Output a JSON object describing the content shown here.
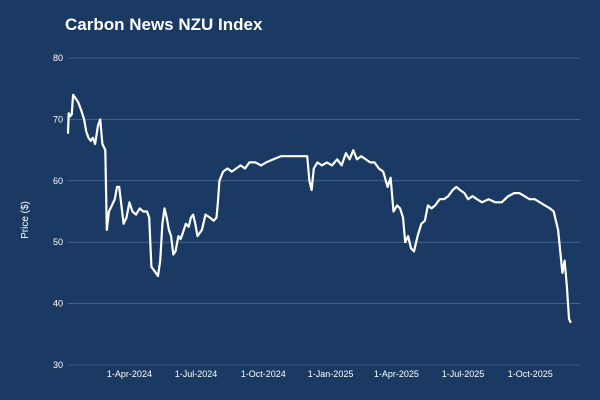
{
  "chart_data": {
    "type": "line",
    "title": "Carbon News NZU Index",
    "xlabel": "",
    "ylabel": "Price ($)",
    "ylim": [
      30,
      80
    ],
    "yticks": [
      30,
      40,
      50,
      60,
      70,
      80
    ],
    "xlim": [
      "2024-01-08",
      "2025-12-08"
    ],
    "xticks": [
      "1-Apr-2024",
      "1-Jul-2024",
      "1-Oct-2024",
      "1-Jan-2025",
      "1-Apr-2025",
      "1-Jul-2025",
      "1-Oct-2025"
    ],
    "grid": "horizontal",
    "legend": "none",
    "line_color": "#ffffff",
    "background_color": "#1b3a63",
    "series": [
      {
        "points": [
          [
            "2024-01-08",
            67.8
          ],
          [
            "2024-01-09",
            71.0
          ],
          [
            "2024-01-11",
            70.5
          ],
          [
            "2024-01-13",
            70.8
          ],
          [
            "2024-01-15",
            74.0
          ],
          [
            "2024-01-18",
            73.5
          ],
          [
            "2024-01-22",
            72.8
          ],
          [
            "2024-01-26",
            71.5
          ],
          [
            "2024-01-30",
            70.0
          ],
          [
            "2024-02-02",
            68.0
          ],
          [
            "2024-02-05",
            67.0
          ],
          [
            "2024-02-08",
            66.5
          ],
          [
            "2024-02-11",
            67.0
          ],
          [
            "2024-02-14",
            66.0
          ],
          [
            "2024-02-18",
            69.0
          ],
          [
            "2024-02-21",
            70.0
          ],
          [
            "2024-02-24",
            66.0
          ],
          [
            "2024-02-28",
            65.0
          ],
          [
            "2024-03-01",
            52.0
          ],
          [
            "2024-03-04",
            55.0
          ],
          [
            "2024-03-08",
            56.0
          ],
          [
            "2024-03-12",
            57.0
          ],
          [
            "2024-03-15",
            59.0
          ],
          [
            "2024-03-18",
            59.0
          ],
          [
            "2024-03-21",
            56.0
          ],
          [
            "2024-03-24",
            53.0
          ],
          [
            "2024-03-28",
            54.0
          ],
          [
            "2024-04-01",
            56.5
          ],
          [
            "2024-04-05",
            55.0
          ],
          [
            "2024-04-10",
            54.5
          ],
          [
            "2024-04-15",
            55.5
          ],
          [
            "2024-04-20",
            55.0
          ],
          [
            "2024-04-25",
            55.0
          ],
          [
            "2024-04-28",
            54.0
          ],
          [
            "2024-05-01",
            46.0
          ],
          [
            "2024-05-04",
            45.5
          ],
          [
            "2024-05-07",
            45.0
          ],
          [
            "2024-05-10",
            44.5
          ],
          [
            "2024-05-13",
            47.0
          ],
          [
            "2024-05-16",
            53.0
          ],
          [
            "2024-05-19",
            55.5
          ],
          [
            "2024-05-22",
            54.0
          ],
          [
            "2024-05-25",
            52.0
          ],
          [
            "2024-05-28",
            51.0
          ],
          [
            "2024-05-31",
            48.0
          ],
          [
            "2024-06-03",
            48.5
          ],
          [
            "2024-06-07",
            51.0
          ],
          [
            "2024-06-10",
            50.5
          ],
          [
            "2024-06-13",
            51.5
          ],
          [
            "2024-06-17",
            53.0
          ],
          [
            "2024-06-21",
            52.5
          ],
          [
            "2024-06-24",
            54.0
          ],
          [
            "2024-06-27",
            54.5
          ],
          [
            "2024-06-30",
            53.0
          ],
          [
            "2024-07-03",
            51.0
          ],
          [
            "2024-07-06",
            51.5
          ],
          [
            "2024-07-09",
            52.0
          ],
          [
            "2024-07-14",
            54.5
          ],
          [
            "2024-07-20",
            54.0
          ],
          [
            "2024-07-25",
            53.5
          ],
          [
            "2024-07-29",
            54.0
          ],
          [
            "2024-07-31",
            56.5
          ],
          [
            "2024-08-02",
            60.0
          ],
          [
            "2024-08-07",
            61.5
          ],
          [
            "2024-08-13",
            62.0
          ],
          [
            "2024-08-19",
            61.5
          ],
          [
            "2024-08-25",
            62.0
          ],
          [
            "2024-08-31",
            62.5
          ],
          [
            "2024-09-06",
            62.0
          ],
          [
            "2024-09-12",
            63.0
          ],
          [
            "2024-09-20",
            63.0
          ],
          [
            "2024-09-28",
            62.5
          ],
          [
            "2024-10-05",
            63.0
          ],
          [
            "2024-10-15",
            63.5
          ],
          [
            "2024-10-25",
            64.0
          ],
          [
            "2024-11-05",
            64.0
          ],
          [
            "2024-11-15",
            64.0
          ],
          [
            "2024-11-25",
            64.0
          ],
          [
            "2024-11-30",
            64.0
          ],
          [
            "2024-12-03",
            60.0
          ],
          [
            "2024-12-06",
            58.5
          ],
          [
            "2024-12-09",
            62.0
          ],
          [
            "2024-12-14",
            63.0
          ],
          [
            "2024-12-20",
            62.5
          ],
          [
            "2024-12-27",
            63.0
          ],
          [
            "2025-01-03",
            62.5
          ],
          [
            "2025-01-10",
            63.5
          ],
          [
            "2025-01-16",
            62.5
          ],
          [
            "2025-01-22",
            64.5
          ],
          [
            "2025-01-27",
            63.5
          ],
          [
            "2025-02-01",
            65.0
          ],
          [
            "2025-02-06",
            63.5
          ],
          [
            "2025-02-12",
            64.0
          ],
          [
            "2025-02-18",
            63.5
          ],
          [
            "2025-02-24",
            63.0
          ],
          [
            "2025-03-02",
            63.0
          ],
          [
            "2025-03-08",
            62.0
          ],
          [
            "2025-03-14",
            61.5
          ],
          [
            "2025-03-20",
            59.0
          ],
          [
            "2025-03-24",
            60.5
          ],
          [
            "2025-03-28",
            55.0
          ],
          [
            "2025-04-02",
            56.0
          ],
          [
            "2025-04-06",
            55.5
          ],
          [
            "2025-04-10",
            54.0
          ],
          [
            "2025-04-13",
            50.0
          ],
          [
            "2025-04-17",
            51.0
          ],
          [
            "2025-04-21",
            49.0
          ],
          [
            "2025-04-25",
            48.5
          ],
          [
            "2025-04-30",
            51.0
          ],
          [
            "2025-05-05",
            53.0
          ],
          [
            "2025-05-10",
            53.5
          ],
          [
            "2025-05-14",
            56.0
          ],
          [
            "2025-05-19",
            55.5
          ],
          [
            "2025-05-24",
            56.0
          ],
          [
            "2025-05-30",
            57.0
          ],
          [
            "2025-06-05",
            57.0
          ],
          [
            "2025-06-11",
            57.5
          ],
          [
            "2025-06-17",
            58.5
          ],
          [
            "2025-06-22",
            59.0
          ],
          [
            "2025-06-27",
            58.5
          ],
          [
            "2025-07-03",
            58.0
          ],
          [
            "2025-07-08",
            57.0
          ],
          [
            "2025-07-14",
            57.5
          ],
          [
            "2025-07-20",
            57.0
          ],
          [
            "2025-07-27",
            56.5
          ],
          [
            "2025-08-05",
            57.0
          ],
          [
            "2025-08-14",
            56.5
          ],
          [
            "2025-08-23",
            56.5
          ],
          [
            "2025-09-01",
            57.5
          ],
          [
            "2025-09-09",
            58.0
          ],
          [
            "2025-09-16",
            58.0
          ],
          [
            "2025-09-23",
            57.5
          ],
          [
            "2025-09-30",
            57.0
          ],
          [
            "2025-10-07",
            57.0
          ],
          [
            "2025-10-14",
            56.5
          ],
          [
            "2025-10-21",
            56.0
          ],
          [
            "2025-10-28",
            55.5
          ],
          [
            "2025-11-02",
            55.0
          ],
          [
            "2025-11-08",
            52.0
          ],
          [
            "2025-11-14",
            45.0
          ],
          [
            "2025-11-17",
            47.0
          ],
          [
            "2025-11-20",
            43.0
          ],
          [
            "2025-11-23",
            37.5
          ],
          [
            "2025-11-25",
            37.0
          ]
        ]
      }
    ]
  }
}
